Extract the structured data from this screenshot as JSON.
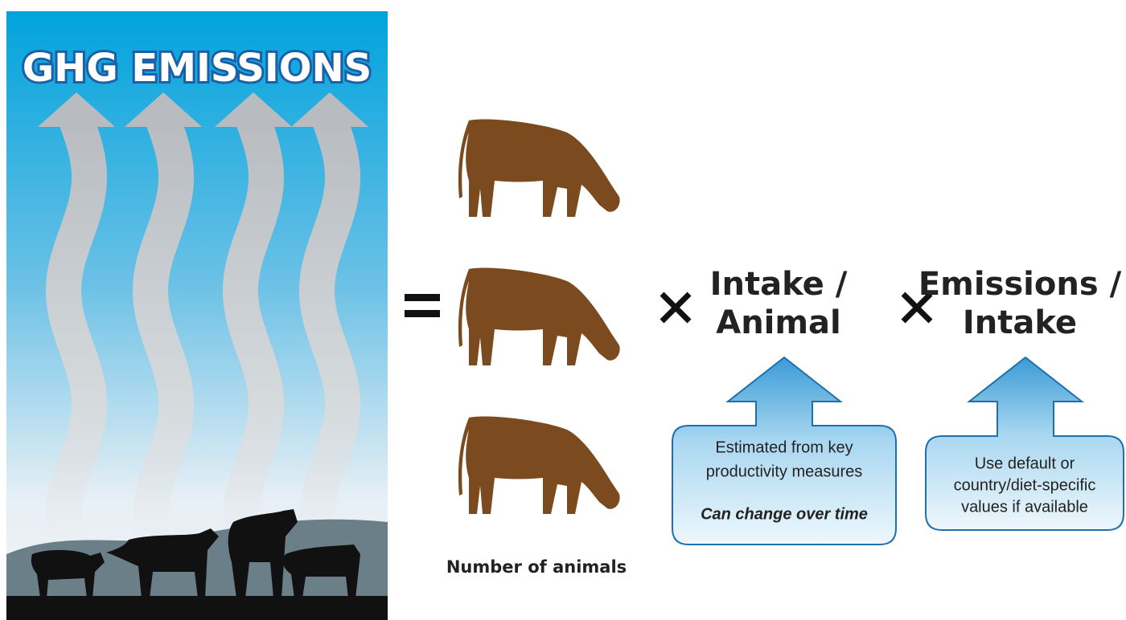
{
  "panel": {
    "title": "GHG EMISSIONS"
  },
  "formula": {
    "factors": [
      {
        "lines": [
          "Intake /",
          "Animal"
        ]
      },
      {
        "lines": [
          "Emissions /",
          "Intake"
        ]
      }
    ],
    "animals_label": "Number of animals"
  },
  "callouts": [
    {
      "lines": [
        "Estimated from key",
        "productivity measures"
      ],
      "note": "Can change over time"
    },
    {
      "lines": [
        "Use default or",
        "country/diet-specific",
        "values if available"
      ]
    }
  ]
}
